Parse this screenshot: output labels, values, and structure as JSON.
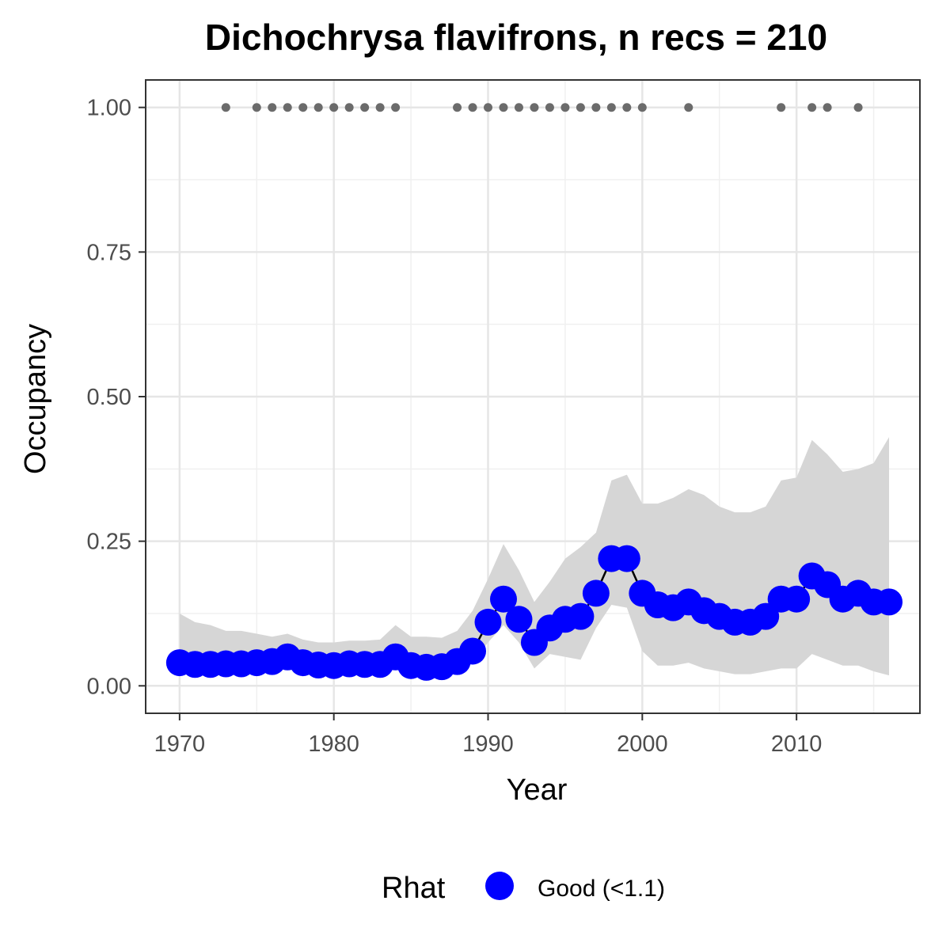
{
  "chart_data": {
    "type": "line",
    "title": "Dichochrysa flavifrons, n recs = 210",
    "xlabel": "Year",
    "ylabel": "Occupancy",
    "xlim": [
      1967.8,
      2018
    ],
    "ylim": [
      -0.0475,
      1.0475
    ],
    "x_ticks": [
      1970,
      1980,
      1990,
      2000,
      2010
    ],
    "x_tick_labels": [
      "1970",
      "1980",
      "1990",
      "2000",
      "2010"
    ],
    "y_ticks": [
      0,
      0.25,
      0.5,
      0.75,
      1.0
    ],
    "y_tick_labels": [
      "0.00",
      "0.25",
      "0.50",
      "0.75",
      "1.00"
    ],
    "grid": true,
    "x": [
      1970,
      1971,
      1972,
      1973,
      1974,
      1975,
      1976,
      1977,
      1978,
      1979,
      1980,
      1981,
      1982,
      1983,
      1984,
      1985,
      1986,
      1987,
      1988,
      1989,
      1990,
      1991,
      1992,
      1993,
      1994,
      1995,
      1996,
      1997,
      1998,
      1999,
      2000,
      2001,
      2002,
      2003,
      2004,
      2005,
      2006,
      2007,
      2008,
      2009,
      2010,
      2011,
      2012,
      2013,
      2014,
      2015,
      2016
    ],
    "series": [
      {
        "name": "Good (<1.1)",
        "color": "#0000ff",
        "values": [
          0.04,
          0.037,
          0.037,
          0.038,
          0.038,
          0.04,
          0.042,
          0.05,
          0.04,
          0.036,
          0.035,
          0.038,
          0.037,
          0.037,
          0.05,
          0.035,
          0.032,
          0.033,
          0.042,
          0.06,
          0.11,
          0.15,
          0.115,
          0.075,
          0.1,
          0.115,
          0.12,
          0.16,
          0.22,
          0.22,
          0.16,
          0.14,
          0.135,
          0.145,
          0.13,
          0.12,
          0.11,
          0.11,
          0.12,
          0.15,
          0.15,
          0.19,
          0.175,
          0.15,
          0.16,
          0.145,
          0.145
        ]
      }
    ],
    "ribbon_lower": [
      0.03,
      0.027,
      0.027,
      0.028,
      0.027,
      0.028,
      0.03,
      0.035,
      0.029,
      0.026,
      0.025,
      0.027,
      0.026,
      0.026,
      0.036,
      0.025,
      0.023,
      0.024,
      0.03,
      0.042,
      0.075,
      0.105,
      0.075,
      0.03,
      0.055,
      0.05,
      0.045,
      0.1,
      0.14,
      0.135,
      0.06,
      0.035,
      0.035,
      0.04,
      0.03,
      0.025,
      0.02,
      0.02,
      0.025,
      0.03,
      0.03,
      0.055,
      0.045,
      0.035,
      0.035,
      0.025,
      0.018
    ],
    "ribbon_upper": [
      0.125,
      0.11,
      0.105,
      0.095,
      0.095,
      0.09,
      0.085,
      0.09,
      0.08,
      0.075,
      0.075,
      0.078,
      0.078,
      0.08,
      0.105,
      0.085,
      0.085,
      0.083,
      0.095,
      0.13,
      0.185,
      0.245,
      0.2,
      0.145,
      0.18,
      0.22,
      0.24,
      0.265,
      0.355,
      0.365,
      0.315,
      0.315,
      0.325,
      0.34,
      0.33,
      0.31,
      0.3,
      0.3,
      0.31,
      0.355,
      0.36,
      0.425,
      0.4,
      0.37,
      0.375,
      0.385,
      0.43
    ],
    "ribbon_color": "#d6d6d6",
    "record_years": [
      1973,
      1975,
      1976,
      1977,
      1978,
      1979,
      1980,
      1981,
      1982,
      1983,
      1984,
      1988,
      1989,
      1990,
      1991,
      1992,
      1993,
      1994,
      1995,
      1996,
      1997,
      1998,
      1999,
      2000,
      2003,
      2009,
      2011,
      2012,
      2014
    ],
    "record_value": 1.0,
    "record_color": "#6b6b6b",
    "legend": {
      "title": "Rhat",
      "placement": "bottom",
      "entries": [
        {
          "label": "Good (<1.1)",
          "color": "#0000ff"
        }
      ]
    }
  }
}
